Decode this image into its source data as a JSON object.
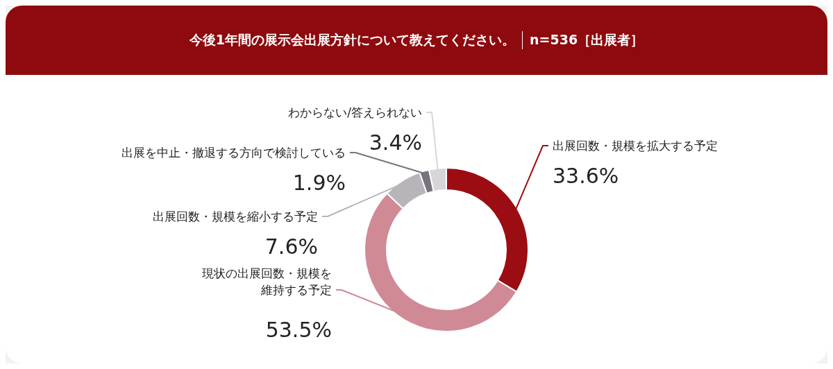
{
  "chart_data": {
    "type": "donut",
    "title": "今後1年間の展示会出展方針について教えてください。",
    "subtitle": "n=536［出展者］",
    "categories": [
      "出展回数・規模を拡大する予定",
      "現状の出展回数・規模を維持する予定",
      "出展回数・規模を縮小する予定",
      "出展を中止・撤退する方向で検討している",
      "わからない/答えられない"
    ],
    "values": [
      33.6,
      53.5,
      7.6,
      1.9,
      3.4
    ],
    "value_labels": [
      "33.6%",
      "53.5%",
      "7.6%",
      "1.9%",
      "3.4%"
    ],
    "colors": [
      "#9b0d12",
      "#d08a96",
      "#b7b5ba",
      "#77747b",
      "#d7d5d9"
    ]
  }
}
